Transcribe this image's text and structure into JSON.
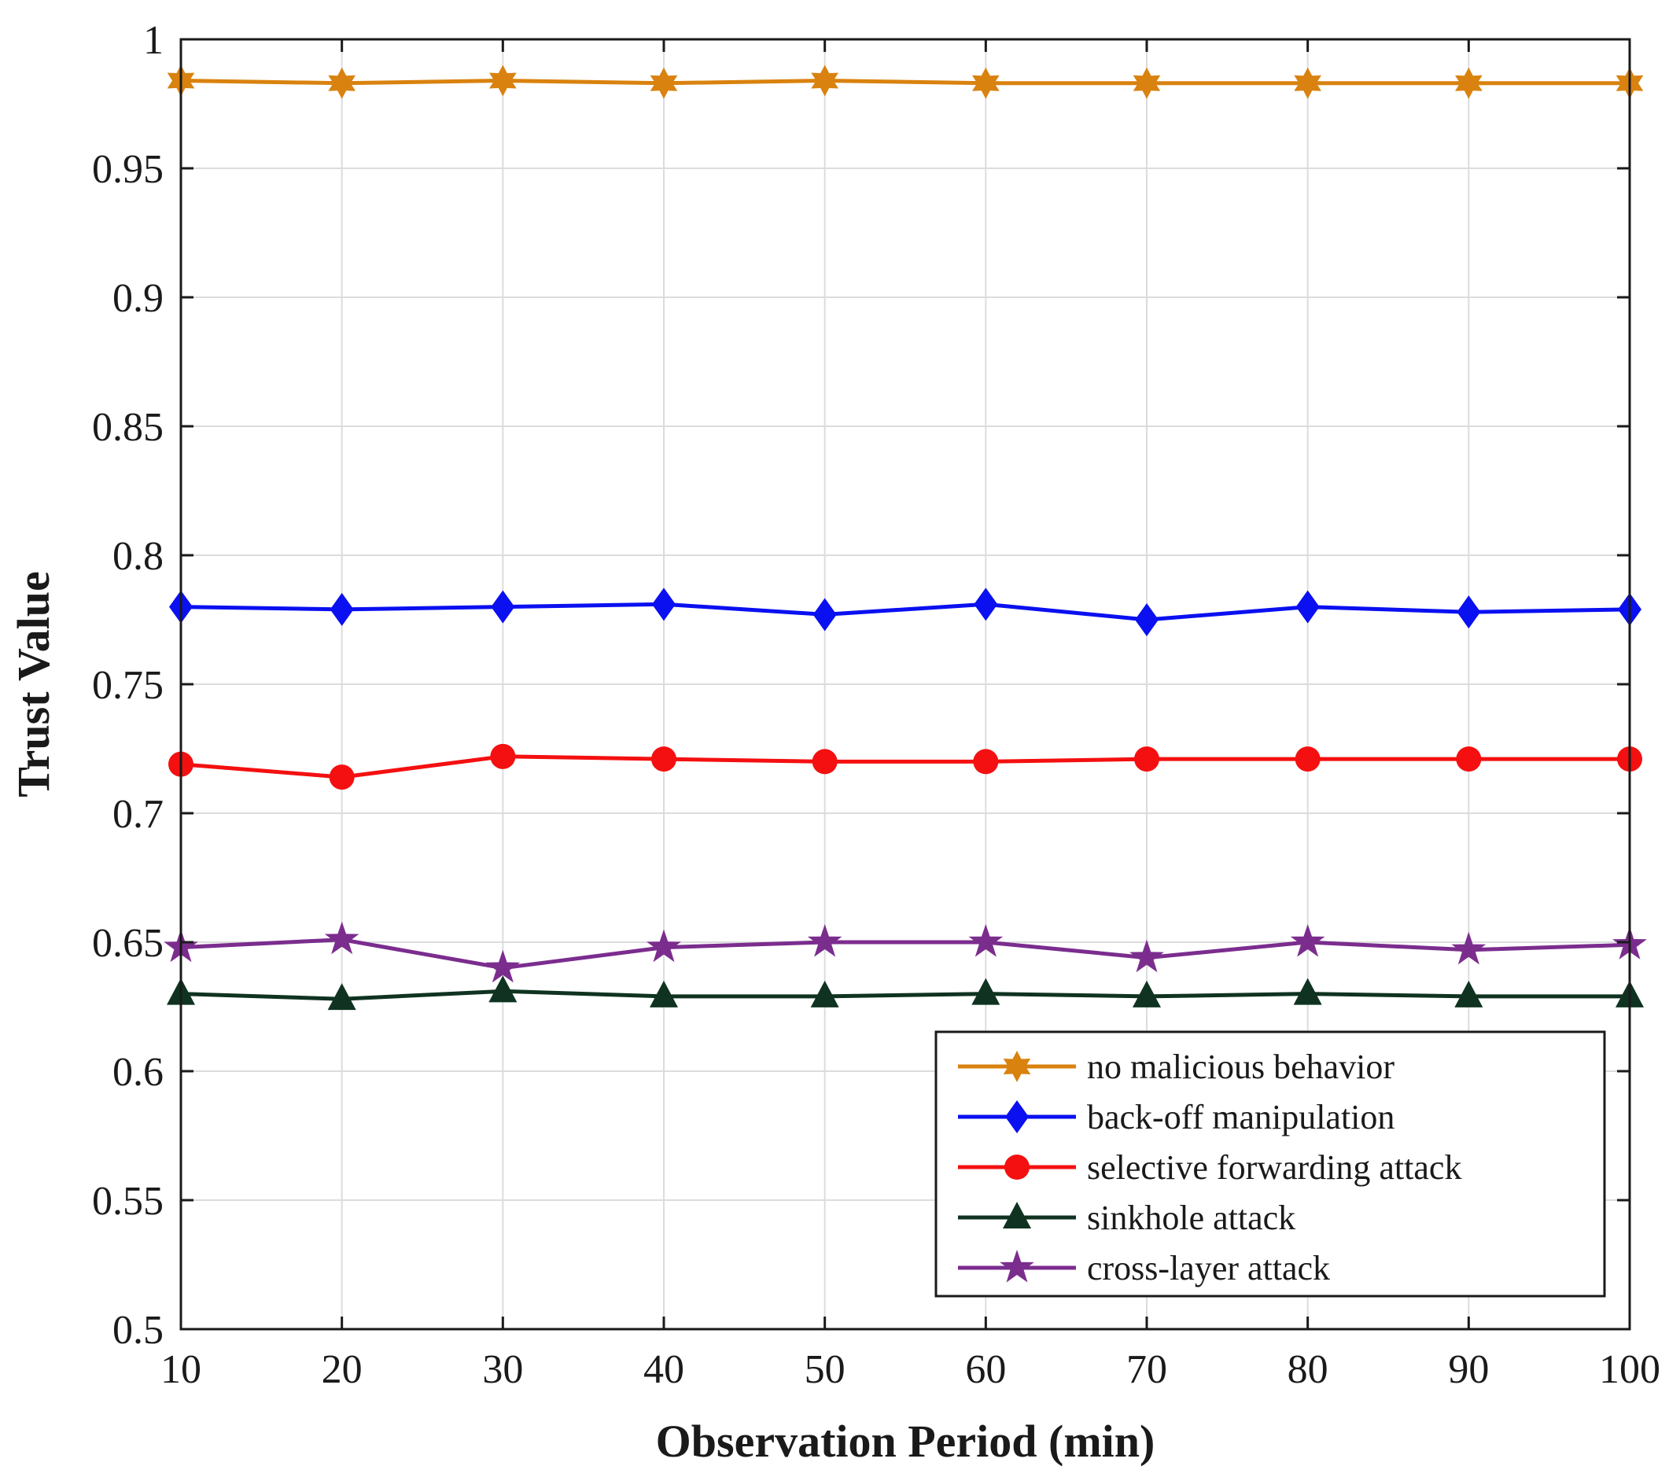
{
  "chart_data": {
    "type": "line",
    "title": "",
    "xlabel": "Observation Period (min)",
    "ylabel": "Trust Value",
    "x": [
      10,
      20,
      30,
      40,
      50,
      60,
      70,
      80,
      90,
      100
    ],
    "xlim": [
      10,
      100
    ],
    "ylim": [
      0.5,
      1
    ],
    "xticks": [
      "10",
      "20",
      "30",
      "40",
      "50",
      "60",
      "70",
      "80",
      "90",
      "100"
    ],
    "yticks": [
      "0.5",
      "0.55",
      "0.6",
      "0.65",
      "0.7",
      "0.75",
      "0.8",
      "0.85",
      "0.9",
      "0.95",
      "1"
    ],
    "ytick_values": [
      0.5,
      0.55,
      0.6,
      0.65,
      0.7,
      0.75,
      0.8,
      0.85,
      0.9,
      0.95,
      1.0
    ],
    "grid": true,
    "legend_position": "bottom-right",
    "series": [
      {
        "name": "no malicious behavior",
        "color": "#d9820f",
        "marker": "hexagram",
        "values": [
          0.984,
          0.983,
          0.984,
          0.983,
          0.984,
          0.983,
          0.983,
          0.983,
          0.983,
          0.983
        ]
      },
      {
        "name": "back-off manipulation",
        "color": "#0a10f0",
        "marker": "diamond",
        "values": [
          0.78,
          0.779,
          0.78,
          0.781,
          0.777,
          0.781,
          0.775,
          0.78,
          0.778,
          0.779
        ]
      },
      {
        "name": "selective forwarding attack",
        "color": "#f41010",
        "marker": "circle",
        "values": [
          0.719,
          0.714,
          0.722,
          0.721,
          0.72,
          0.72,
          0.721,
          0.721,
          0.721,
          0.721
        ]
      },
      {
        "name": "sinkhole attack",
        "color": "#0f3320",
        "marker": "triangle",
        "values": [
          0.63,
          0.628,
          0.631,
          0.629,
          0.629,
          0.63,
          0.629,
          0.63,
          0.629,
          0.629
        ]
      },
      {
        "name": "cross-layer attack",
        "color": "#7b2d8e",
        "marker": "pentagram",
        "values": [
          0.648,
          0.651,
          0.64,
          0.648,
          0.65,
          0.65,
          0.644,
          0.65,
          0.647,
          0.649
        ]
      }
    ]
  }
}
